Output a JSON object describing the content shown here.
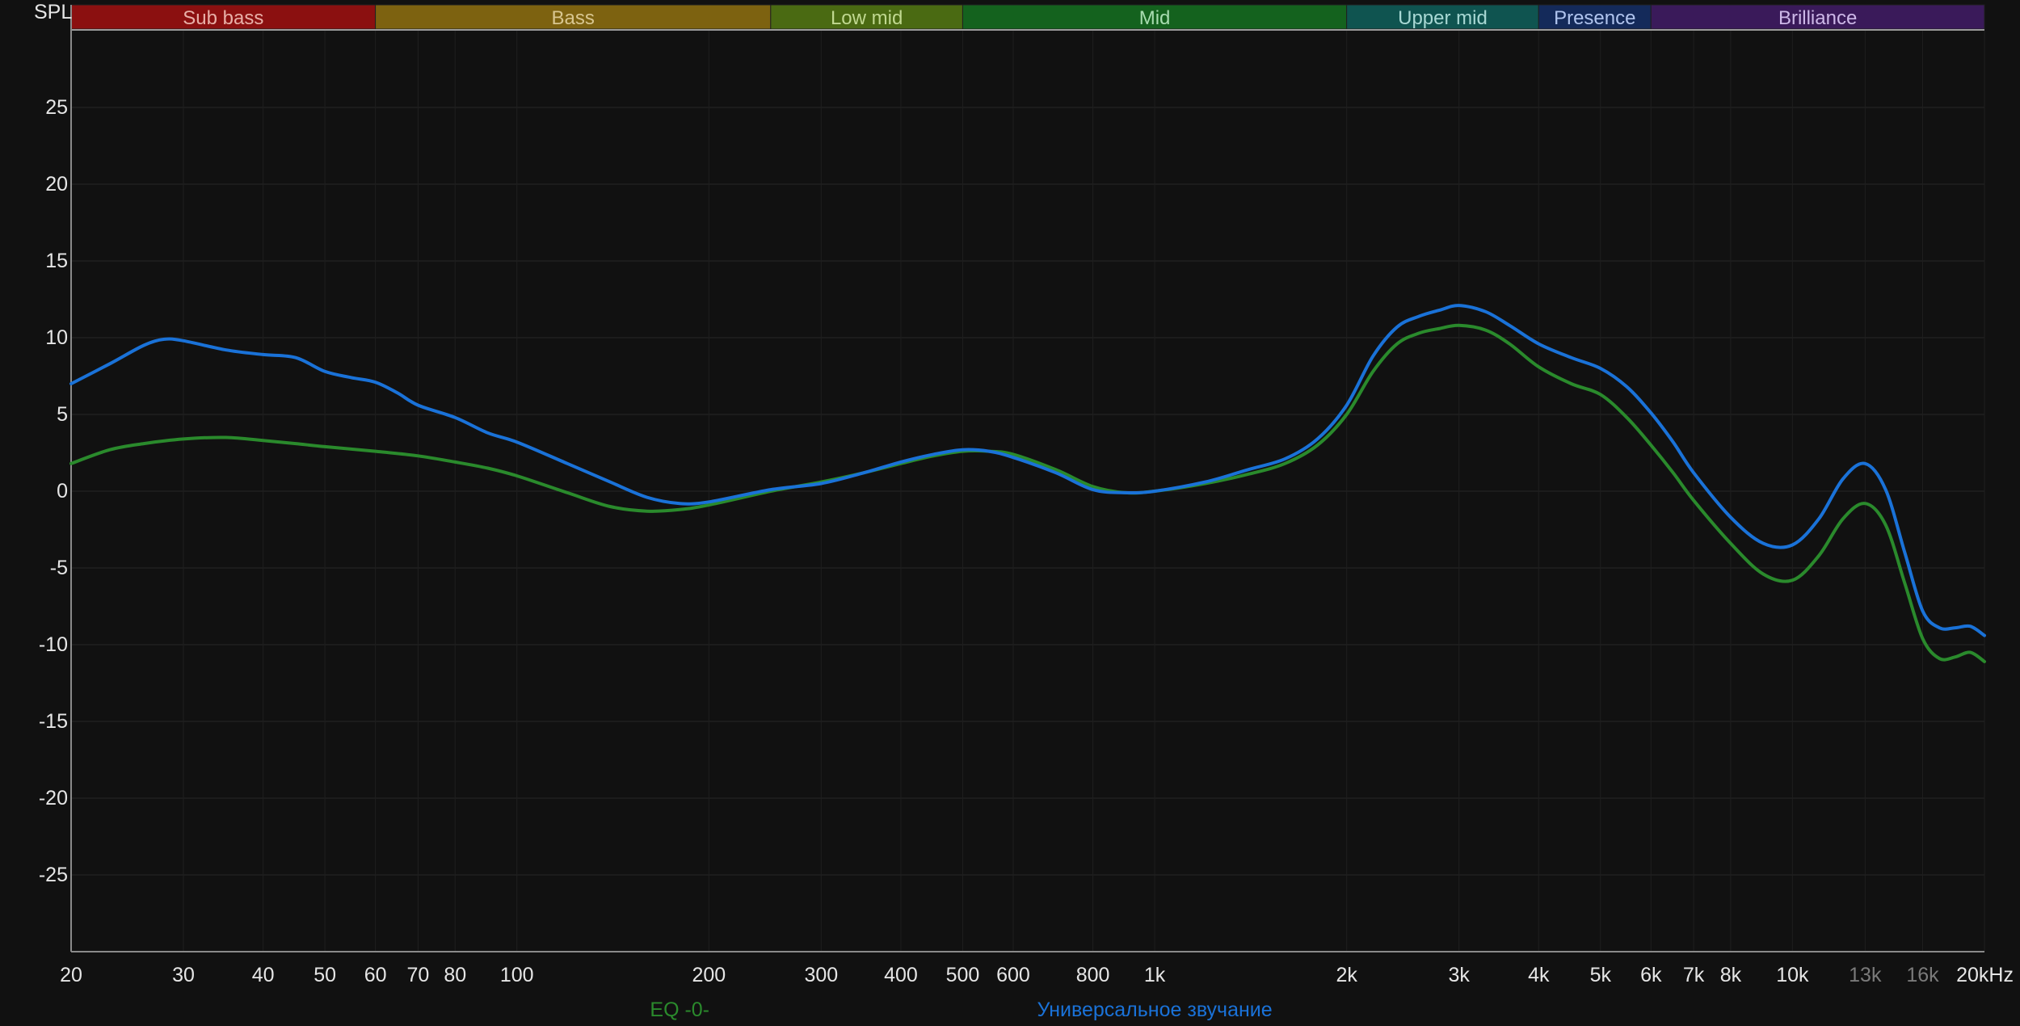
{
  "chart_data": {
    "type": "line",
    "ylabel": "SPL",
    "x_scale": "log",
    "xlim": [
      20,
      20000
    ],
    "ylim": [
      -30,
      30
    ],
    "grid": true,
    "y_ticks": [
      25,
      20,
      15,
      10,
      5,
      0,
      -5,
      -10,
      -15,
      -20,
      -25
    ],
    "x_ticks": [
      {
        "value": 20,
        "label": "20",
        "muted": false
      },
      {
        "value": 30,
        "label": "30",
        "muted": false
      },
      {
        "value": 40,
        "label": "40",
        "muted": false
      },
      {
        "value": 50,
        "label": "50",
        "muted": false
      },
      {
        "value": 60,
        "label": "60",
        "muted": false
      },
      {
        "value": 70,
        "label": "70",
        "muted": false
      },
      {
        "value": 80,
        "label": "80",
        "muted": false
      },
      {
        "value": 100,
        "label": "100",
        "muted": false
      },
      {
        "value": 200,
        "label": "200",
        "muted": false
      },
      {
        "value": 300,
        "label": "300",
        "muted": false
      },
      {
        "value": 400,
        "label": "400",
        "muted": false
      },
      {
        "value": 500,
        "label": "500",
        "muted": false
      },
      {
        "value": 600,
        "label": "600",
        "muted": false
      },
      {
        "value": 800,
        "label": "800",
        "muted": false
      },
      {
        "value": 1000,
        "label": "1k",
        "muted": false
      },
      {
        "value": 2000,
        "label": "2k",
        "muted": false
      },
      {
        "value": 3000,
        "label": "3k",
        "muted": false
      },
      {
        "value": 4000,
        "label": "4k",
        "muted": false
      },
      {
        "value": 5000,
        "label": "5k",
        "muted": false
      },
      {
        "value": 6000,
        "label": "6k",
        "muted": false
      },
      {
        "value": 7000,
        "label": "7k",
        "muted": false
      },
      {
        "value": 8000,
        "label": "8k",
        "muted": false
      },
      {
        "value": 10000,
        "label": "10k",
        "muted": false
      },
      {
        "value": 13000,
        "label": "13k",
        "muted": true
      },
      {
        "value": 16000,
        "label": "16k",
        "muted": true
      },
      {
        "value": 20000,
        "label": "20kHz",
        "muted": false
      }
    ],
    "bands": [
      {
        "name": "Sub bass",
        "from": 20,
        "to": 60,
        "color": "#8b1010",
        "text_color": "#e8b0a8"
      },
      {
        "name": "Bass",
        "from": 60,
        "to": 250,
        "color": "#7d6210",
        "text_color": "#d8c690"
      },
      {
        "name": "Low mid",
        "from": 250,
        "to": 500,
        "color": "#4a6a12",
        "text_color": "#c0d890"
      },
      {
        "name": "Mid",
        "from": 500,
        "to": 2000,
        "color": "#14621e",
        "text_color": "#a8dcb0"
      },
      {
        "name": "Upper mid",
        "from": 2000,
        "to": 4000,
        "color": "#0f5450",
        "text_color": "#a8d8d4"
      },
      {
        "name": "Presence",
        "from": 4000,
        "to": 6000,
        "color": "#142a5a",
        "text_color": "#b0c4ee"
      },
      {
        "name": "Brilliance",
        "from": 6000,
        "to": 20000,
        "color": "#3a1a5a",
        "text_color": "#cdb8e8"
      }
    ],
    "series": [
      {
        "name": "Универсальное звучание",
        "color": "#1a72d8",
        "points": [
          [
            20,
            7
          ],
          [
            23,
            8.3
          ],
          [
            26,
            9.5
          ],
          [
            28,
            9.9
          ],
          [
            30,
            9.8
          ],
          [
            35,
            9.2
          ],
          [
            40,
            8.9
          ],
          [
            45,
            8.7
          ],
          [
            50,
            7.8
          ],
          [
            55,
            7.4
          ],
          [
            60,
            7.1
          ],
          [
            65,
            6.4
          ],
          [
            70,
            5.6
          ],
          [
            80,
            4.8
          ],
          [
            90,
            3.8
          ],
          [
            100,
            3.2
          ],
          [
            120,
            1.8
          ],
          [
            140,
            0.6
          ],
          [
            160,
            -0.4
          ],
          [
            180,
            -0.8
          ],
          [
            200,
            -0.7
          ],
          [
            250,
            0.1
          ],
          [
            300,
            0.5
          ],
          [
            350,
            1.2
          ],
          [
            400,
            1.9
          ],
          [
            450,
            2.4
          ],
          [
            500,
            2.7
          ],
          [
            550,
            2.6
          ],
          [
            600,
            2.2
          ],
          [
            700,
            1.2
          ],
          [
            800,
            0.1
          ],
          [
            900,
            -0.1
          ],
          [
            1000,
            0
          ],
          [
            1200,
            0.6
          ],
          [
            1400,
            1.4
          ],
          [
            1600,
            2.1
          ],
          [
            1800,
            3.4
          ],
          [
            2000,
            5.6
          ],
          [
            2200,
            8.8
          ],
          [
            2400,
            10.7
          ],
          [
            2600,
            11.4
          ],
          [
            2800,
            11.8
          ],
          [
            3000,
            12.1
          ],
          [
            3300,
            11.7
          ],
          [
            3600,
            10.8
          ],
          [
            4000,
            9.6
          ],
          [
            4500,
            8.7
          ],
          [
            5000,
            8
          ],
          [
            5500,
            6.8
          ],
          [
            6000,
            5.1
          ],
          [
            6500,
            3.2
          ],
          [
            7000,
            1.2
          ],
          [
            8000,
            -1.7
          ],
          [
            9000,
            -3.4
          ],
          [
            10000,
            -3.5
          ],
          [
            11000,
            -1.8
          ],
          [
            12000,
            0.8
          ],
          [
            13000,
            1.8
          ],
          [
            14000,
            0.1
          ],
          [
            15000,
            -4
          ],
          [
            16000,
            -7.8
          ],
          [
            17000,
            -8.9
          ],
          [
            18000,
            -8.9
          ],
          [
            19000,
            -8.8
          ],
          [
            20000,
            -9.4
          ]
        ]
      },
      {
        "name": "EQ -0-",
        "color": "#2a8a2c",
        "points": [
          [
            20,
            1.8
          ],
          [
            23,
            2.7
          ],
          [
            26,
            3.1
          ],
          [
            30,
            3.4
          ],
          [
            35,
            3.5
          ],
          [
            40,
            3.3
          ],
          [
            45,
            3.1
          ],
          [
            50,
            2.9
          ],
          [
            60,
            2.6
          ],
          [
            70,
            2.3
          ],
          [
            80,
            1.9
          ],
          [
            90,
            1.5
          ],
          [
            100,
            1
          ],
          [
            120,
            -0.1
          ],
          [
            140,
            -1
          ],
          [
            160,
            -1.3
          ],
          [
            180,
            -1.2
          ],
          [
            200,
            -0.9
          ],
          [
            250,
            0
          ],
          [
            300,
            0.6
          ],
          [
            350,
            1.2
          ],
          [
            400,
            1.8
          ],
          [
            450,
            2.3
          ],
          [
            500,
            2.6
          ],
          [
            550,
            2.6
          ],
          [
            600,
            2.4
          ],
          [
            700,
            1.4
          ],
          [
            800,
            0.3
          ],
          [
            900,
            -0.1
          ],
          [
            1000,
            0
          ],
          [
            1200,
            0.5
          ],
          [
            1400,
            1.1
          ],
          [
            1600,
            1.8
          ],
          [
            1800,
            3
          ],
          [
            2000,
            5
          ],
          [
            2200,
            7.8
          ],
          [
            2400,
            9.6
          ],
          [
            2600,
            10.3
          ],
          [
            2800,
            10.6
          ],
          [
            3000,
            10.8
          ],
          [
            3300,
            10.5
          ],
          [
            3600,
            9.6
          ],
          [
            4000,
            8.1
          ],
          [
            4500,
            7
          ],
          [
            5000,
            6.3
          ],
          [
            5500,
            4.8
          ],
          [
            6000,
            3
          ],
          [
            6500,
            1.2
          ],
          [
            7000,
            -0.6
          ],
          [
            8000,
            -3.4
          ],
          [
            9000,
            -5.4
          ],
          [
            10000,
            -5.8
          ],
          [
            11000,
            -4.2
          ],
          [
            12000,
            -1.8
          ],
          [
            13000,
            -0.8
          ],
          [
            14000,
            -2.2
          ],
          [
            15000,
            -6
          ],
          [
            16000,
            -9.6
          ],
          [
            17000,
            -10.9
          ],
          [
            18000,
            -10.8
          ],
          [
            19000,
            -10.5
          ],
          [
            20000,
            -11.1
          ]
        ]
      }
    ],
    "legend": [
      {
        "label": "EQ -0-",
        "color": "#2a8a2c",
        "at_hz": 180
      },
      {
        "label": "Универсальное звучание",
        "color": "#1a72d8",
        "at_hz": 1000
      }
    ]
  }
}
